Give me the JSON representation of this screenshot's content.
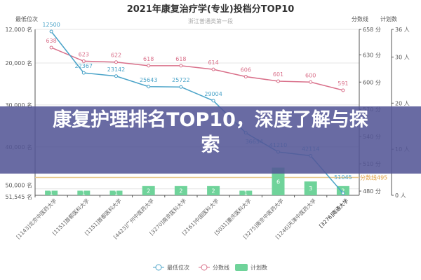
{
  "chart_data": {
    "type": "line+bar",
    "title": "2021年康复治疗学(专业)投档分TOP10",
    "subtitle": "浙江普通类第一段",
    "y_left_label": "最低位次",
    "y_right1_label": "分数线",
    "y_right2_label": "计划数",
    "categories": [
      "[1143]北京中医药大学",
      "[1151]首都医科大学",
      "[1151]首都医科大学",
      "[4423]广州中医药大学",
      "[3270]南京医科大学",
      "[2161]中国医科大学",
      "[5031]重庆医科大学",
      "[3275]南京中医药大学",
      "[1246]天津中医药大学",
      "[3276]南通大学"
    ],
    "series": [
      {
        "name": "最低位次",
        "type": "line",
        "axis": "left",
        "color": "#4aa3c8",
        "values": [
          12500,
          22367,
          23142,
          25643,
          25722,
          29004,
          36654,
          41210,
          42114,
          51045
        ]
      },
      {
        "name": "分数线",
        "type": "line",
        "axis": "right1",
        "color": "#d9708a",
        "values": [
          638,
          623,
          622,
          618,
          618,
          614,
          606,
          601,
          600,
          591
        ]
      },
      {
        "name": "计划数",
        "type": "bar",
        "axis": "right2",
        "color": "#6fd39a",
        "values": [
          1,
          1,
          1,
          2,
          2,
          2,
          1,
          6,
          3,
          2
        ]
      }
    ],
    "y_left": {
      "range": [
        12000,
        51545
      ],
      "inverted": true,
      "ticks": [
        "12,000 名",
        "20,000 名",
        "30,000 名",
        "40,000 名",
        "50,000 名",
        "51,545 名"
      ],
      "tick_values": [
        12000,
        20000,
        30000,
        40000,
        50000,
        51545
      ]
    },
    "y_right1": {
      "ticks": [
        "658 分",
        "630 分",
        "600 分",
        "570 分",
        "540 分",
        "510 分",
        "480 分"
      ],
      "tick_values": [
        658,
        630,
        600,
        570,
        540,
        510,
        480
      ]
    },
    "y_right2": {
      "ticks": [
        "36 人",
        "30 人",
        "20 人",
        "10 人",
        "0 人"
      ],
      "tick_values": [
        36,
        30,
        20,
        10,
        0
      ]
    },
    "markline": {
      "label": "分数线495",
      "value": 495,
      "color": "#e8c88a"
    },
    "legend_placement": "bottom"
  },
  "banner": {
    "text": "康复护理排名TOP10，深度了解与探索"
  }
}
